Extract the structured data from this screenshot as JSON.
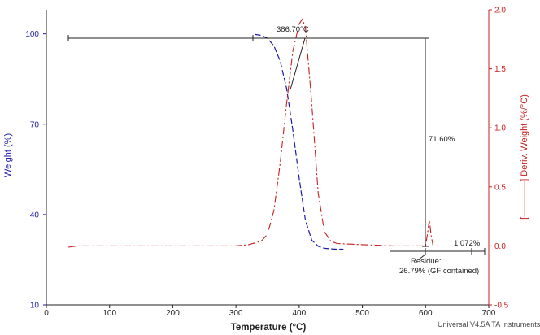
{
  "chart_data": {
    "type": "line",
    "title": "",
    "xlabel": "Temperature (°C)",
    "ylabel_left": "Weight (%)",
    "ylabel_right": "[――――] Deriv. Weight (%/°C)",
    "xlim": [
      0,
      700
    ],
    "ylim_left": [
      10,
      108
    ],
    "ylim_right": [
      -0.5,
      2.0
    ],
    "x_ticks": [
      "0",
      "100",
      "200",
      "300",
      "400",
      "500",
      "600",
      "700"
    ],
    "y_left_ticks": [
      "10",
      "40",
      "70",
      "100"
    ],
    "y_right_ticks": [
      "-0.5",
      "0.0",
      "0.5",
      "1.0",
      "1.5",
      "2.0"
    ],
    "colors": {
      "weight": "#1a1aa8",
      "deriv": "#c81e1e",
      "annotation": "#222222"
    },
    "series": [
      {
        "name": "Weight",
        "axis": "left",
        "style": "dashed",
        "x": [
          330,
          340,
          350,
          360,
          370,
          380,
          390,
          400,
          410,
          420,
          430,
          440,
          450,
          460,
          470
        ],
        "values": [
          99.8,
          99.5,
          98.5,
          96,
          91,
          82,
          68,
          52,
          38,
          31.5,
          29.5,
          28.8,
          28.6,
          28.5,
          28.5
        ]
      },
      {
        "name": "Deriv. Weight",
        "axis": "right",
        "style": "dash-dot",
        "x": [
          35,
          50,
          100,
          200,
          300,
          320,
          340,
          350,
          360,
          370,
          380,
          390,
          400,
          405,
          410,
          420,
          430,
          440,
          450,
          460,
          500,
          550,
          600,
          603,
          606,
          609,
          612,
          620
        ],
        "values": [
          -0.01,
          0.0,
          0.0,
          0.0,
          0.0,
          0.01,
          0.04,
          0.1,
          0.3,
          0.7,
          1.2,
          1.65,
          1.88,
          1.92,
          1.85,
          1.2,
          0.45,
          0.12,
          0.04,
          0.02,
          0.01,
          0.0,
          0.0,
          0.1,
          0.22,
          0.08,
          0.0,
          0.0
        ]
      }
    ],
    "annotations": {
      "onset": "386.70°C",
      "weight_loss": "71.60%",
      "residue_line1": "Residue:",
      "residue_line2": "26.79% (GF contained)",
      "tail_loss": "1.072%"
    },
    "footer": "Universal V4.5A TA Instruments"
  }
}
